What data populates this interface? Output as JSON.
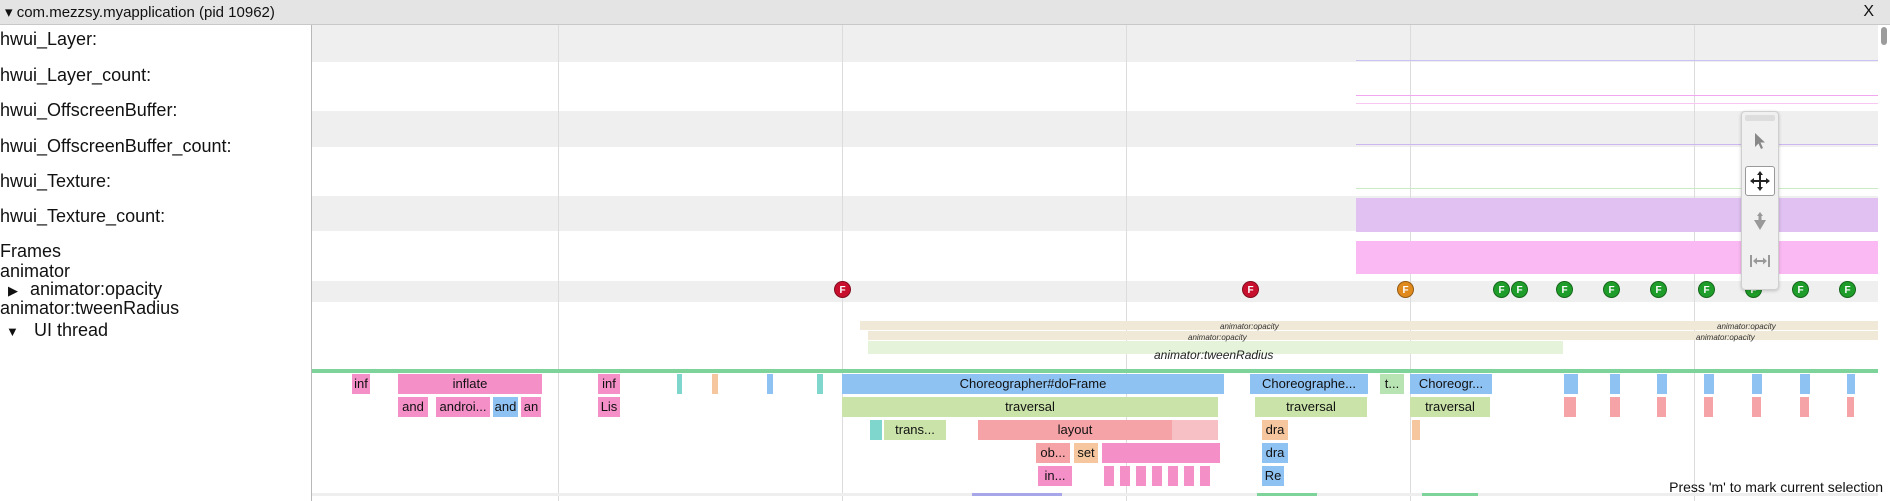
{
  "header": {
    "title": "com.mezzsy.myapplication (pid 10962)",
    "close_label": "X"
  },
  "tracks": [
    "hwui_Layer:",
    "hwui_Layer_count:",
    "hwui_OffscreenBuffer:",
    "hwui_OffscreenBuffer_count:",
    "hwui_Texture:",
    "hwui_Texture_count:",
    "Frames",
    "animator",
    "animator:opacity",
    "animator:tweenRadius",
    "UI thread"
  ],
  "frames": {
    "label": "F",
    "colors": {
      "red": "#c8102e",
      "orange": "#e08a1e",
      "green": "#1f9d2a"
    }
  },
  "animator": {
    "opacity_label": "animator:opacity",
    "tween_label": "animator:tweenRadius"
  },
  "slices": {
    "inf": "inf",
    "inflate": "inflate",
    "and": "and",
    "androi": "androi...",
    "an": "an",
    "lis": "Lis",
    "choreographer": "Choreographer#doFrame",
    "choreographe_short": "Choreographe...",
    "t": "t...",
    "choreogr": "Choreogr...",
    "traversal": "traversal",
    "trans": "trans...",
    "layout": "layout",
    "dra": "dra",
    "ob": "ob...",
    "set": "set",
    "in": "in...",
    "re": "Re"
  },
  "colors": {
    "band_gray": "#efefef",
    "pink": "#f48fc8",
    "blue": "#8ec2f3",
    "green_light": "#c9e3a8",
    "salmon": "#f6a3a8",
    "teal": "#7fd6cc",
    "purple_fill": "#e0c1f2",
    "pink_fill": "#fbb9f3"
  },
  "hint": "Press 'm' to mark current selection"
}
